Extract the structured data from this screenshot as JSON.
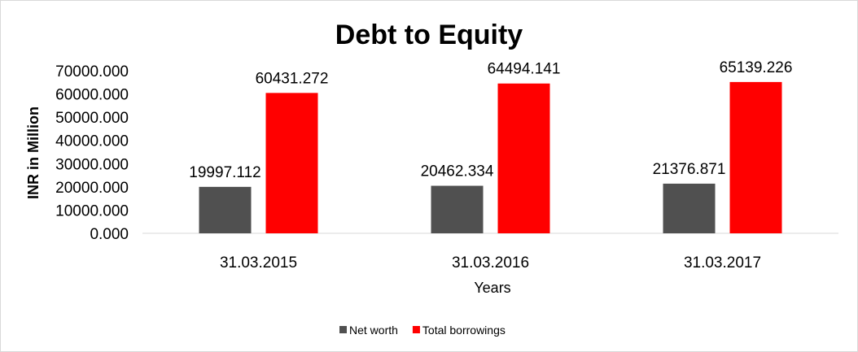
{
  "chart_data": {
    "type": "bar",
    "title": "Debt to Equity",
    "xlabel": "Years",
    "ylabel": "INR in Million",
    "categories": [
      "31.03.2015",
      "31.03.2016",
      "31.03.2017"
    ],
    "series": [
      {
        "name": "Net worth",
        "color": "#505050",
        "values": [
          19997.112,
          20462.334,
          21376.871
        ],
        "labels": [
          "19997.112",
          "20462.334",
          "21376.871"
        ]
      },
      {
        "name": "Total borrowings",
        "color": "#ff0000",
        "values": [
          60431.272,
          64494.141,
          65139.226
        ],
        "labels": [
          "60431.272",
          "64494.141",
          "65139.226"
        ]
      }
    ],
    "yticks": [
      "0.000",
      "10000.000",
      "20000.000",
      "30000.000",
      "40000.000",
      "50000.000",
      "60000.000",
      "70000.000"
    ],
    "ylim": [
      0,
      70000
    ],
    "grid": false,
    "legend": "bottom"
  }
}
